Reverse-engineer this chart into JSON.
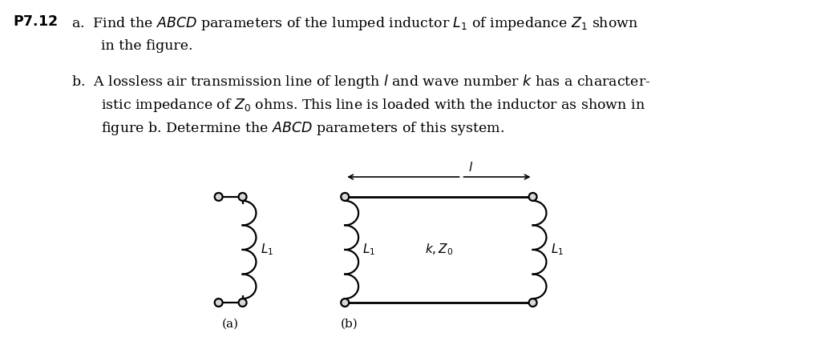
{
  "bg_color": "#ffffff",
  "text_color": "#000000",
  "fig_width": 10.24,
  "fig_height": 4.51,
  "dpi": 100,
  "label_a": "(a)",
  "label_b": "(b)",
  "label_L1": "$L_1$",
  "label_kZ0": "$k, Z_0$",
  "label_l": "$l$",
  "text_fontsize": 12.5,
  "circuit_fontsize": 11
}
